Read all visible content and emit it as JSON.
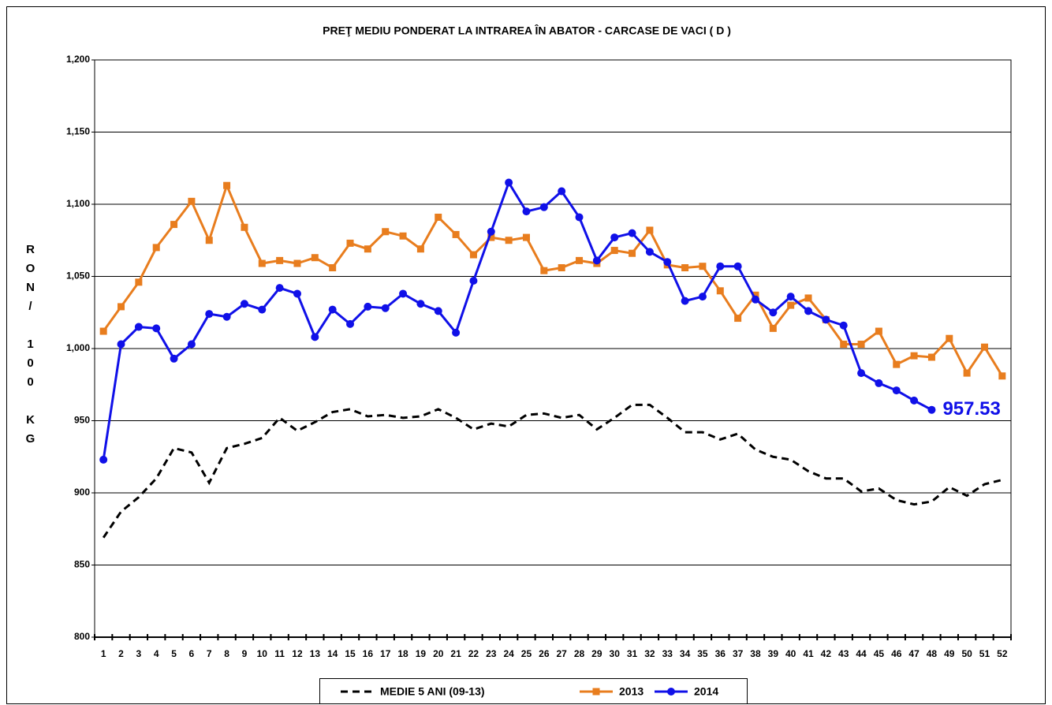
{
  "chart_data": {
    "type": "line",
    "title": "PREŢ MEDIU PONDERAT LA INTRAREA ÎN ABATOR - CARCASE DE VACI ( D )",
    "ylabel": "RON/ 100 KG",
    "categories": [
      1,
      2,
      3,
      4,
      5,
      6,
      7,
      8,
      9,
      10,
      11,
      12,
      13,
      14,
      15,
      16,
      17,
      18,
      19,
      20,
      21,
      22,
      23,
      24,
      25,
      26,
      27,
      28,
      29,
      30,
      31,
      32,
      33,
      34,
      35,
      36,
      37,
      38,
      39,
      40,
      41,
      42,
      43,
      44,
      45,
      46,
      47,
      48,
      49,
      50,
      51,
      52
    ],
    "ylim": [
      800,
      1200
    ],
    "yticks": [
      800,
      850,
      900,
      950,
      {
        "value": 1000,
        "label": "1,000"
      },
      {
        "value": 1050,
        "label": "1,050"
      },
      {
        "value": 1100,
        "label": "1,100"
      },
      {
        "value": 1150,
        "label": "1,150"
      },
      {
        "value": 1200,
        "label": "1,200"
      }
    ],
    "grid": true,
    "legend": "bottom",
    "series": [
      {
        "name": "MEDIE 5 ANI (09-13)",
        "color": "#000000",
        "dashed": true,
        "marker": "none",
        "values": [
          869,
          887,
          897,
          910,
          931,
          928,
          907,
          931,
          934,
          938,
          952,
          943,
          949,
          956,
          958,
          953,
          954,
          952,
          953,
          958,
          952,
          944,
          948,
          946,
          954,
          955,
          952,
          954,
          944,
          952,
          961,
          961,
          952,
          942,
          942,
          937,
          941,
          930,
          925,
          923,
          915,
          910,
          910,
          901,
          903,
          895,
          892,
          894,
          904,
          898,
          906,
          909
        ]
      },
      {
        "name": "2013",
        "color": "#e87d1e",
        "dashed": false,
        "marker": "square",
        "values": [
          1012,
          1029,
          1046,
          1070,
          1086,
          1102,
          1075,
          1113,
          1084,
          1059,
          1061,
          1059,
          1063,
          1056,
          1073,
          1069,
          1081,
          1078,
          1069,
          1091,
          1079,
          1065,
          1077,
          1075,
          1077,
          1054,
          1056,
          1061,
          1059,
          1068,
          1066,
          1082,
          1058,
          1056,
          1057,
          1040,
          1021,
          1037,
          1014,
          1030,
          1035,
          1020,
          1003,
          1003,
          1012,
          989,
          995,
          994,
          1007,
          983,
          1001,
          981
        ]
      },
      {
        "name": "2014",
        "color": "#1010e8",
        "dashed": false,
        "marker": "circle",
        "values": [
          923,
          1003,
          1015,
          1014,
          993,
          1003,
          1024,
          1022,
          1031,
          1027,
          1042,
          1038,
          1008,
          1027,
          1017,
          1029,
          1028,
          1038,
          1031,
          1026,
          1011,
          1047,
          1081,
          1115,
          1095,
          1098,
          1109,
          1091,
          1061,
          1077,
          1080,
          1067,
          1060,
          1033,
          1036,
          1057,
          1057,
          1034,
          1025,
          1036,
          1026,
          1020,
          1016,
          983,
          976,
          971,
          964,
          957.53,
          null,
          null,
          null,
          null
        ]
      }
    ]
  }
}
